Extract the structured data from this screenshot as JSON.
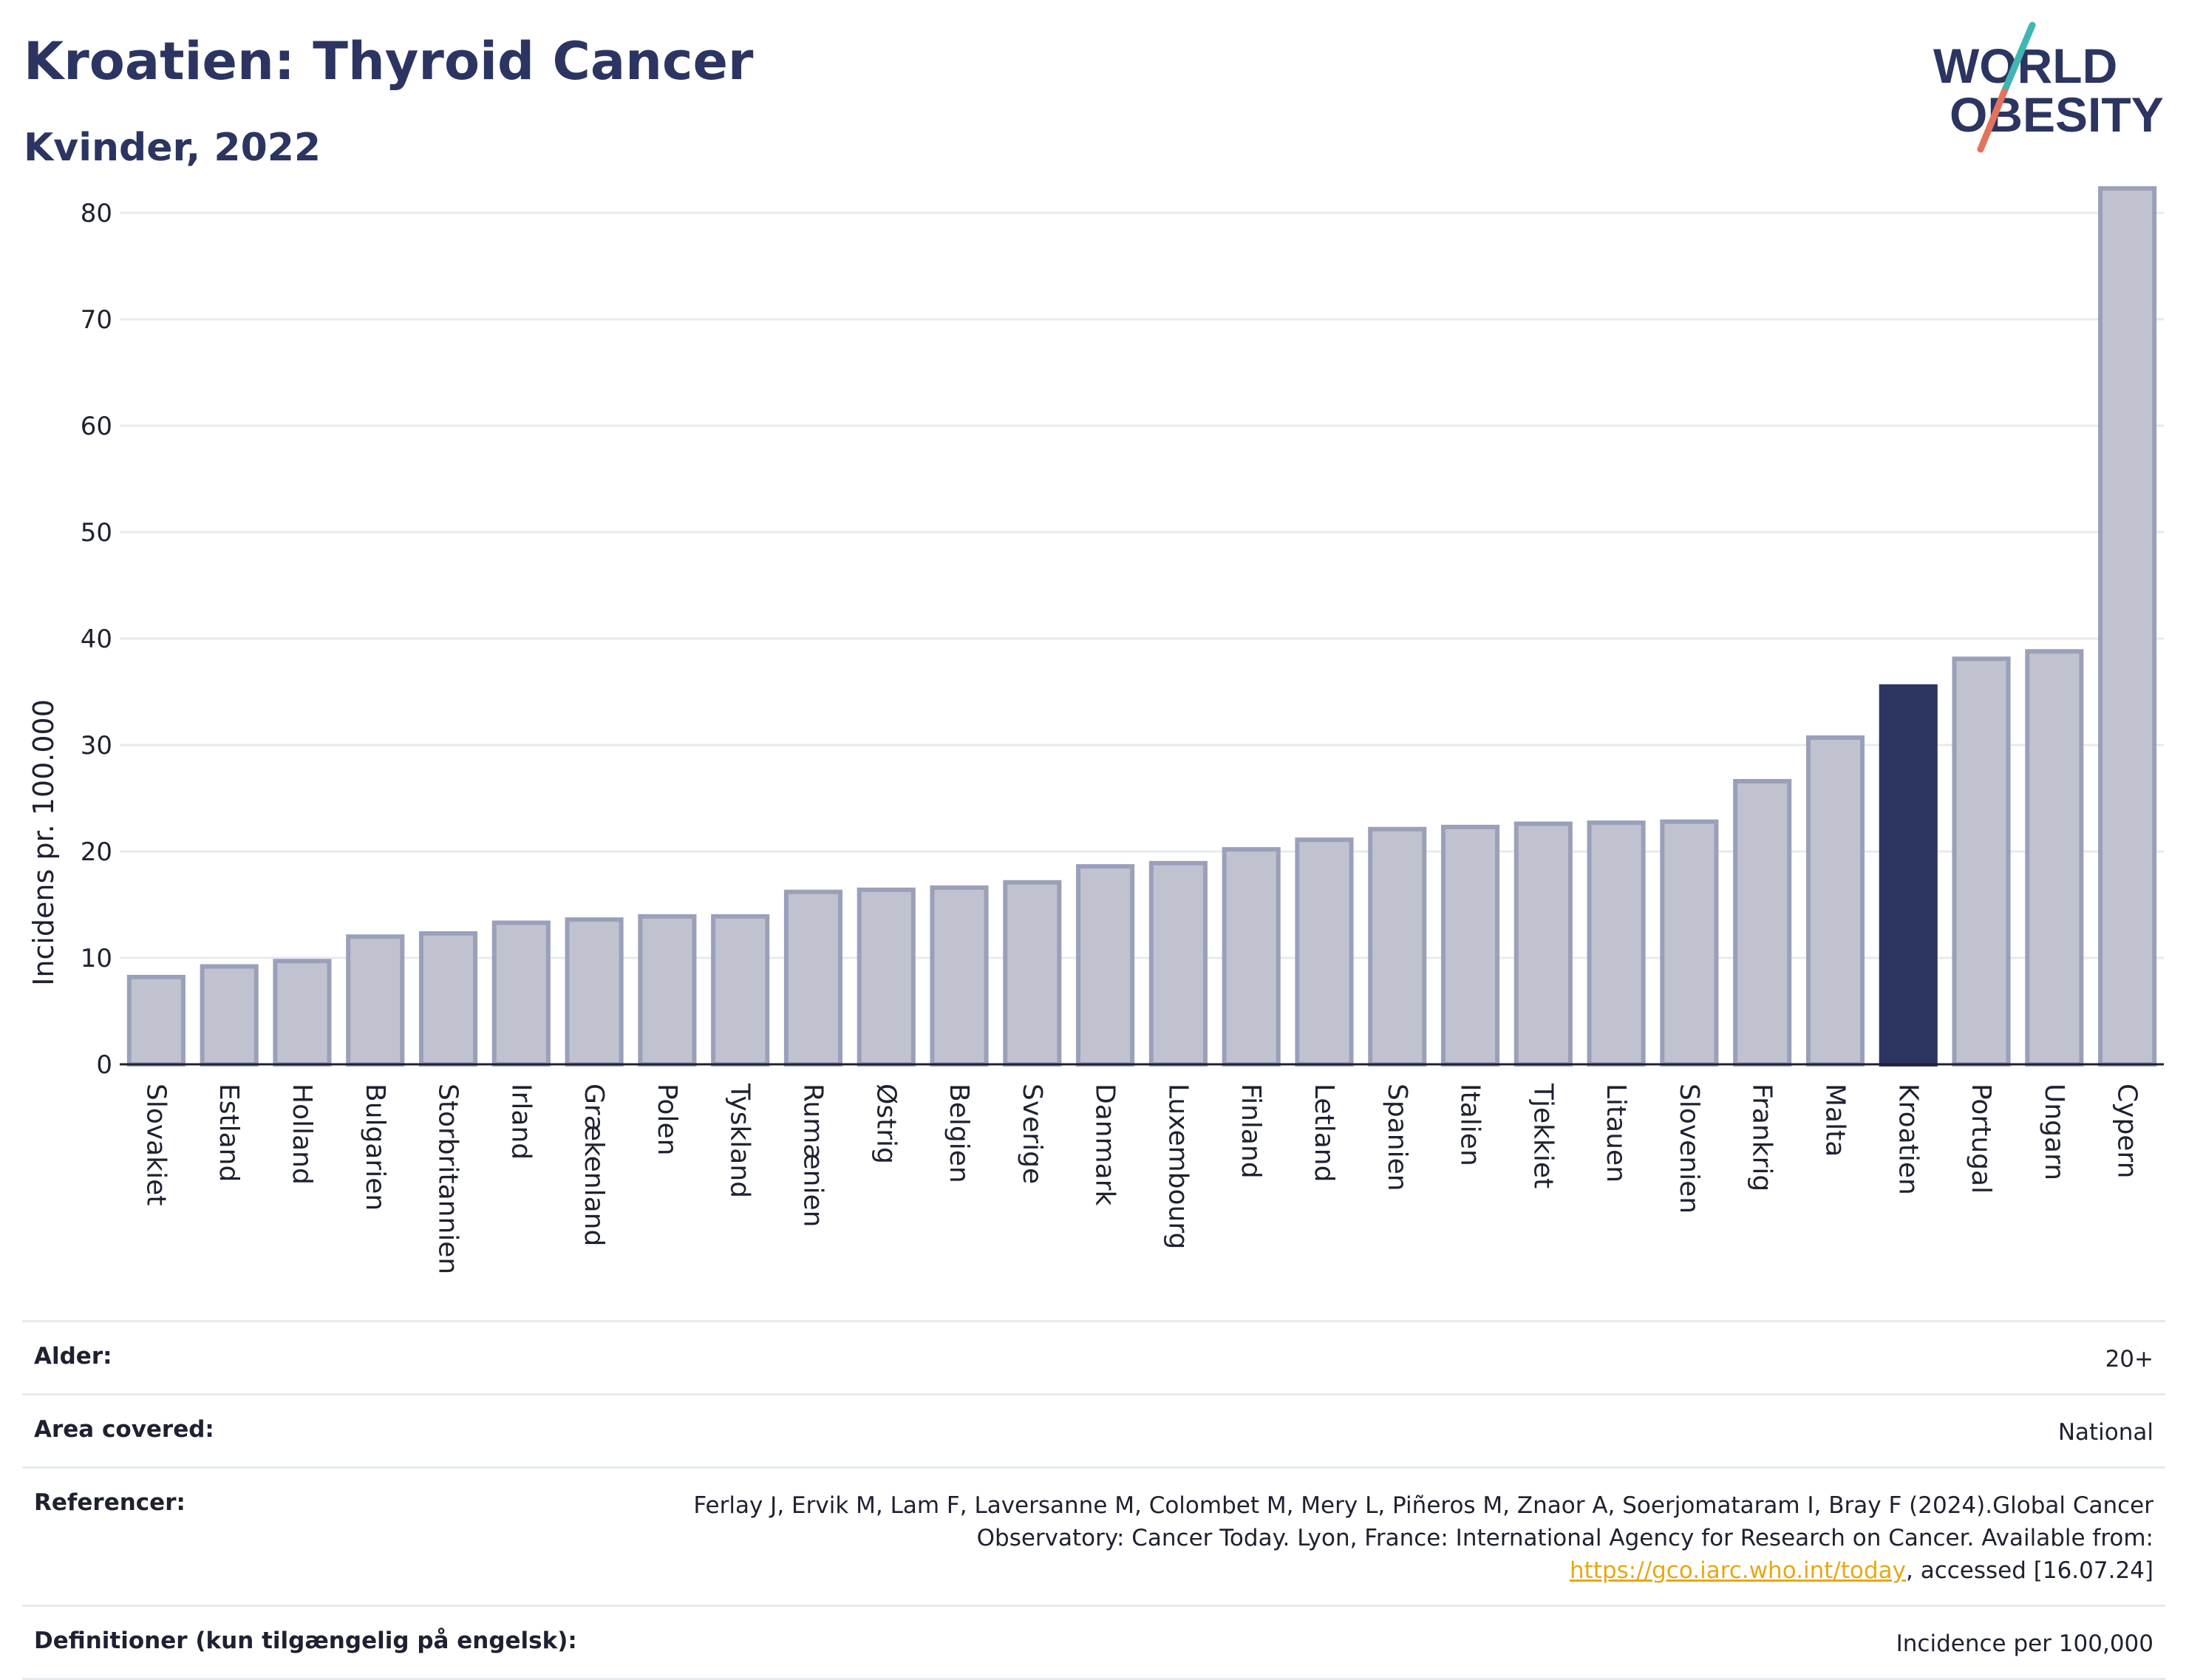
{
  "header": {
    "title": "Kroatien: Thyroid Cancer",
    "subtitle": "Kvinder, 2022"
  },
  "logo": {
    "line1": "WORLD",
    "line2": "OBESITY",
    "slash_colors": [
      "#3fb6b2",
      "#e2735e"
    ],
    "text_color": "#2c3561"
  },
  "chart_data": {
    "type": "bar",
    "ylabel": "Incidens pr. 100.000",
    "ylim": [
      0,
      85
    ],
    "yticks": [
      0,
      10,
      20,
      30,
      40,
      50,
      60,
      70,
      80
    ],
    "grid": true,
    "highlight": "Kroatien",
    "colors": {
      "bar": "#c0c3cf",
      "bar_border": "#9aa0ba",
      "highlight": "#2c3561"
    },
    "categories": [
      "Slovakiet",
      "Estland",
      "Holland",
      "Bulgarien",
      "Storbritannien",
      "Irland",
      "Grækenland",
      "Polen",
      "Tyskland",
      "Rumænien",
      "Østrig",
      "Belgien",
      "Sverige",
      "Danmark",
      "Luxembourg",
      "Finland",
      "Letland",
      "Spanien",
      "Italien",
      "Tjekkiet",
      "Litauen",
      "Slovenien",
      "Frankrig",
      "Malta",
      "Kroatien",
      "Portugal",
      "Ungarn",
      "Cypern"
    ],
    "values": [
      8.2,
      9.2,
      9.7,
      12.0,
      12.3,
      13.3,
      13.6,
      13.9,
      13.9,
      16.2,
      16.4,
      16.6,
      17.1,
      18.6,
      18.9,
      20.2,
      21.1,
      22.1,
      22.3,
      22.6,
      22.7,
      22.8,
      26.6,
      30.7,
      35.5,
      38.1,
      38.8,
      82.3
    ]
  },
  "info": [
    {
      "label": "Alder:",
      "value": "20+"
    },
    {
      "label": "Area covered:",
      "value": "National"
    },
    {
      "label": "Referencer:",
      "value_pre": "Ferlay J, Ervik M, Lam F, Laversanne M, Colombet M, Mery L, Piñeros M, Znaor A, Soerjomataram I, Bray F (2024).Global Cancer Observatory: Cancer Today. Lyon, France: International Agency for Research on Cancer. Available from: ",
      "link": "https://gco.iarc.who.int/today",
      "value_post": ", accessed [16.07.24]"
    },
    {
      "label": "Definitioner (kun tilgængelig på engelsk):",
      "value": "Incidence per 100,000"
    }
  ]
}
